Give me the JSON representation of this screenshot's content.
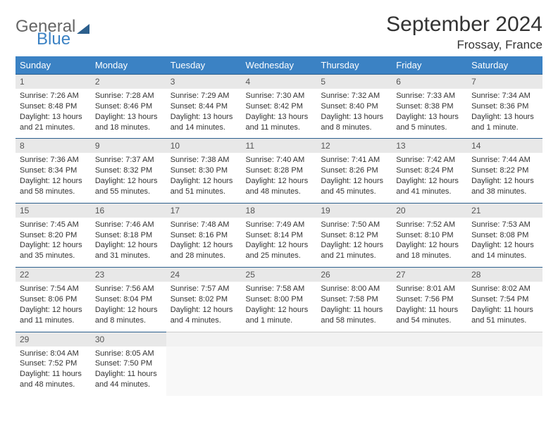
{
  "brand": {
    "word1": "General",
    "word2": "Blue"
  },
  "title": "September 2024",
  "location": "Frossay, France",
  "colors": {
    "header_bg": "#3b82c4",
    "header_text": "#ffffff",
    "daynum_bg": "#e8e8e8",
    "daynum_border": "#2c5f8d",
    "body_text": "#333333",
    "logo_gray": "#666666",
    "logo_blue": "#3b82c4"
  },
  "daynames": [
    "Sunday",
    "Monday",
    "Tuesday",
    "Wednesday",
    "Thursday",
    "Friday",
    "Saturday"
  ],
  "weeks": [
    {
      "nums": [
        "1",
        "2",
        "3",
        "4",
        "5",
        "6",
        "7"
      ],
      "cells": [
        {
          "sunrise": "Sunrise: 7:26 AM",
          "sunset": "Sunset: 8:48 PM",
          "day1": "Daylight: 13 hours",
          "day2": "and 21 minutes."
        },
        {
          "sunrise": "Sunrise: 7:28 AM",
          "sunset": "Sunset: 8:46 PM",
          "day1": "Daylight: 13 hours",
          "day2": "and 18 minutes."
        },
        {
          "sunrise": "Sunrise: 7:29 AM",
          "sunset": "Sunset: 8:44 PM",
          "day1": "Daylight: 13 hours",
          "day2": "and 14 minutes."
        },
        {
          "sunrise": "Sunrise: 7:30 AM",
          "sunset": "Sunset: 8:42 PM",
          "day1": "Daylight: 13 hours",
          "day2": "and 11 minutes."
        },
        {
          "sunrise": "Sunrise: 7:32 AM",
          "sunset": "Sunset: 8:40 PM",
          "day1": "Daylight: 13 hours",
          "day2": "and 8 minutes."
        },
        {
          "sunrise": "Sunrise: 7:33 AM",
          "sunset": "Sunset: 8:38 PM",
          "day1": "Daylight: 13 hours",
          "day2": "and 5 minutes."
        },
        {
          "sunrise": "Sunrise: 7:34 AM",
          "sunset": "Sunset: 8:36 PM",
          "day1": "Daylight: 13 hours",
          "day2": "and 1 minute."
        }
      ]
    },
    {
      "nums": [
        "8",
        "9",
        "10",
        "11",
        "12",
        "13",
        "14"
      ],
      "cells": [
        {
          "sunrise": "Sunrise: 7:36 AM",
          "sunset": "Sunset: 8:34 PM",
          "day1": "Daylight: 12 hours",
          "day2": "and 58 minutes."
        },
        {
          "sunrise": "Sunrise: 7:37 AM",
          "sunset": "Sunset: 8:32 PM",
          "day1": "Daylight: 12 hours",
          "day2": "and 55 minutes."
        },
        {
          "sunrise": "Sunrise: 7:38 AM",
          "sunset": "Sunset: 8:30 PM",
          "day1": "Daylight: 12 hours",
          "day2": "and 51 minutes."
        },
        {
          "sunrise": "Sunrise: 7:40 AM",
          "sunset": "Sunset: 8:28 PM",
          "day1": "Daylight: 12 hours",
          "day2": "and 48 minutes."
        },
        {
          "sunrise": "Sunrise: 7:41 AM",
          "sunset": "Sunset: 8:26 PM",
          "day1": "Daylight: 12 hours",
          "day2": "and 45 minutes."
        },
        {
          "sunrise": "Sunrise: 7:42 AM",
          "sunset": "Sunset: 8:24 PM",
          "day1": "Daylight: 12 hours",
          "day2": "and 41 minutes."
        },
        {
          "sunrise": "Sunrise: 7:44 AM",
          "sunset": "Sunset: 8:22 PM",
          "day1": "Daylight: 12 hours",
          "day2": "and 38 minutes."
        }
      ]
    },
    {
      "nums": [
        "15",
        "16",
        "17",
        "18",
        "19",
        "20",
        "21"
      ],
      "cells": [
        {
          "sunrise": "Sunrise: 7:45 AM",
          "sunset": "Sunset: 8:20 PM",
          "day1": "Daylight: 12 hours",
          "day2": "and 35 minutes."
        },
        {
          "sunrise": "Sunrise: 7:46 AM",
          "sunset": "Sunset: 8:18 PM",
          "day1": "Daylight: 12 hours",
          "day2": "and 31 minutes."
        },
        {
          "sunrise": "Sunrise: 7:48 AM",
          "sunset": "Sunset: 8:16 PM",
          "day1": "Daylight: 12 hours",
          "day2": "and 28 minutes."
        },
        {
          "sunrise": "Sunrise: 7:49 AM",
          "sunset": "Sunset: 8:14 PM",
          "day1": "Daylight: 12 hours",
          "day2": "and 25 minutes."
        },
        {
          "sunrise": "Sunrise: 7:50 AM",
          "sunset": "Sunset: 8:12 PM",
          "day1": "Daylight: 12 hours",
          "day2": "and 21 minutes."
        },
        {
          "sunrise": "Sunrise: 7:52 AM",
          "sunset": "Sunset: 8:10 PM",
          "day1": "Daylight: 12 hours",
          "day2": "and 18 minutes."
        },
        {
          "sunrise": "Sunrise: 7:53 AM",
          "sunset": "Sunset: 8:08 PM",
          "day1": "Daylight: 12 hours",
          "day2": "and 14 minutes."
        }
      ]
    },
    {
      "nums": [
        "22",
        "23",
        "24",
        "25",
        "26",
        "27",
        "28"
      ],
      "cells": [
        {
          "sunrise": "Sunrise: 7:54 AM",
          "sunset": "Sunset: 8:06 PM",
          "day1": "Daylight: 12 hours",
          "day2": "and 11 minutes."
        },
        {
          "sunrise": "Sunrise: 7:56 AM",
          "sunset": "Sunset: 8:04 PM",
          "day1": "Daylight: 12 hours",
          "day2": "and 8 minutes."
        },
        {
          "sunrise": "Sunrise: 7:57 AM",
          "sunset": "Sunset: 8:02 PM",
          "day1": "Daylight: 12 hours",
          "day2": "and 4 minutes."
        },
        {
          "sunrise": "Sunrise: 7:58 AM",
          "sunset": "Sunset: 8:00 PM",
          "day1": "Daylight: 12 hours",
          "day2": "and 1 minute."
        },
        {
          "sunrise": "Sunrise: 8:00 AM",
          "sunset": "Sunset: 7:58 PM",
          "day1": "Daylight: 11 hours",
          "day2": "and 58 minutes."
        },
        {
          "sunrise": "Sunrise: 8:01 AM",
          "sunset": "Sunset: 7:56 PM",
          "day1": "Daylight: 11 hours",
          "day2": "and 54 minutes."
        },
        {
          "sunrise": "Sunrise: 8:02 AM",
          "sunset": "Sunset: 7:54 PM",
          "day1": "Daylight: 11 hours",
          "day2": "and 51 minutes."
        }
      ]
    },
    {
      "nums": [
        "29",
        "30",
        "",
        "",
        "",
        "",
        ""
      ],
      "cells": [
        {
          "sunrise": "Sunrise: 8:04 AM",
          "sunset": "Sunset: 7:52 PM",
          "day1": "Daylight: 11 hours",
          "day2": "and 48 minutes."
        },
        {
          "sunrise": "Sunrise: 8:05 AM",
          "sunset": "Sunset: 7:50 PM",
          "day1": "Daylight: 11 hours",
          "day2": "and 44 minutes."
        },
        null,
        null,
        null,
        null,
        null
      ]
    }
  ]
}
